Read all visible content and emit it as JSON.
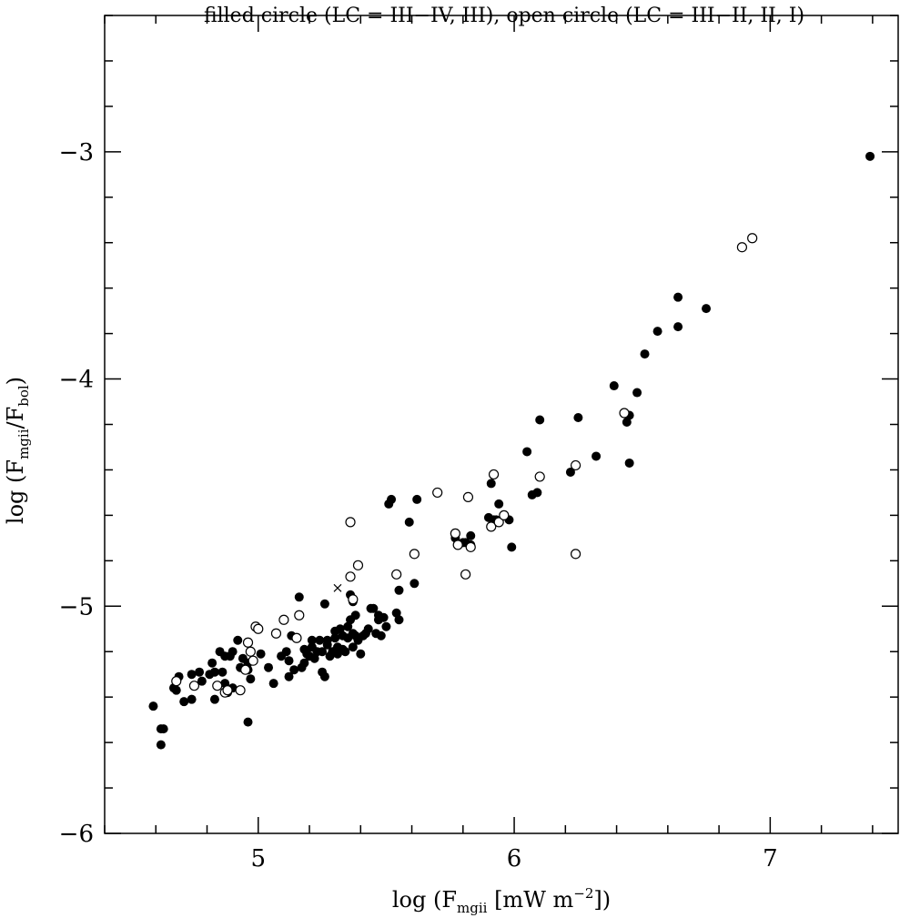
{
  "chart_data": {
    "type": "scatter",
    "title": "filled circle (LC = III−IV, III), open circle (LC = III−II, II, I)",
    "xlabel": {
      "main": "log (F",
      "sub": "mgii",
      "rest": " [mW m",
      "sup": "−2",
      "end": "])"
    },
    "ylabel": {
      "main": "log (F",
      "sub1": "mgii",
      "mid": "/F",
      "sub2": "bol",
      "end": ")"
    },
    "xlim": [
      4.4,
      7.5
    ],
    "ylim": [
      -6.0,
      -2.4
    ],
    "x_ticks": [
      {
        "value": 5,
        "label": "5"
      },
      {
        "value": 6,
        "label": "6"
      },
      {
        "value": 7,
        "label": "7"
      }
    ],
    "y_ticks": [
      {
        "value": -3,
        "label": "−3"
      },
      {
        "value": -4,
        "label": "−4"
      },
      {
        "value": -5,
        "label": "−5"
      },
      {
        "value": -6,
        "label": "−6"
      }
    ],
    "x_minor_step": 0.2,
    "y_minor_step": 0.2,
    "grid": false,
    "series": [
      {
        "name": "filled circle (LC = III−IV, III)",
        "marker": "filled-circle",
        "points": [
          [
            4.59,
            -5.44
          ],
          [
            4.62,
            -5.54
          ],
          [
            4.63,
            -5.54
          ],
          [
            4.62,
            -5.61
          ],
          [
            4.67,
            -5.36
          ],
          [
            4.68,
            -5.37
          ],
          [
            4.69,
            -5.31
          ],
          [
            4.71,
            -5.42
          ],
          [
            4.74,
            -5.41
          ],
          [
            4.74,
            -5.3
          ],
          [
            4.77,
            -5.29
          ],
          [
            4.78,
            -5.33
          ],
          [
            4.81,
            -5.3
          ],
          [
            4.82,
            -5.25
          ],
          [
            4.83,
            -5.29
          ],
          [
            4.83,
            -5.41
          ],
          [
            4.85,
            -5.2
          ],
          [
            4.86,
            -5.29
          ],
          [
            4.87,
            -5.34
          ],
          [
            4.87,
            -5.22
          ],
          [
            4.88,
            -5.38
          ],
          [
            4.89,
            -5.22
          ],
          [
            4.9,
            -5.36
          ],
          [
            4.9,
            -5.2
          ],
          [
            4.92,
            -5.15
          ],
          [
            4.93,
            -5.27
          ],
          [
            4.94,
            -5.23
          ],
          [
            4.96,
            -5.28
          ],
          [
            4.96,
            -5.25
          ],
          [
            4.97,
            -5.32
          ],
          [
            4.97,
            -5.2
          ],
          [
            4.96,
            -5.51
          ],
          [
            4.98,
            -5.24
          ],
          [
            5.01,
            -5.21
          ],
          [
            5.04,
            -5.27
          ],
          [
            5.06,
            -5.34
          ],
          [
            5.09,
            -5.22
          ],
          [
            5.11,
            -5.2
          ],
          [
            5.12,
            -5.31
          ],
          [
            5.12,
            -5.24
          ],
          [
            5.13,
            -5.13
          ],
          [
            5.14,
            -5.28
          ],
          [
            5.15,
            -5.14
          ],
          [
            5.16,
            -4.96
          ],
          [
            5.17,
            -5.27
          ],
          [
            5.18,
            -5.19
          ],
          [
            5.18,
            -5.25
          ],
          [
            5.19,
            -5.21
          ],
          [
            5.2,
            -5.22
          ],
          [
            5.21,
            -5.18
          ],
          [
            5.21,
            -5.15
          ],
          [
            5.22,
            -5.23
          ],
          [
            5.23,
            -5.2
          ],
          [
            5.24,
            -5.15
          ],
          [
            5.25,
            -5.29
          ],
          [
            5.26,
            -5.31
          ],
          [
            5.25,
            -5.2
          ],
          [
            5.26,
            -4.99
          ],
          [
            5.27,
            -5.17
          ],
          [
            5.27,
            -5.15
          ],
          [
            5.28,
            -5.22
          ],
          [
            5.29,
            -5.2
          ],
          [
            5.3,
            -5.11
          ],
          [
            5.3,
            -5.14
          ],
          [
            5.31,
            -5.18
          ],
          [
            5.31,
            -5.21
          ],
          [
            5.32,
            -5.1
          ],
          [
            5.33,
            -5.13
          ],
          [
            5.33,
            -5.19
          ],
          [
            5.34,
            -5.2
          ],
          [
            5.35,
            -5.14
          ],
          [
            5.35,
            -5.09
          ],
          [
            5.36,
            -5.06
          ],
          [
            5.36,
            -4.95
          ],
          [
            5.37,
            -5.12
          ],
          [
            5.37,
            -5.18
          ],
          [
            5.37,
            -4.98
          ],
          [
            5.38,
            -5.04
          ],
          [
            5.38,
            -5.13
          ],
          [
            5.39,
            -5.15
          ],
          [
            5.4,
            -5.21
          ],
          [
            5.41,
            -5.13
          ],
          [
            5.42,
            -5.12
          ],
          [
            5.43,
            -5.1
          ],
          [
            5.44,
            -5.01
          ],
          [
            5.45,
            -5.01
          ],
          [
            5.46,
            -5.12
          ],
          [
            5.47,
            -5.06
          ],
          [
            5.47,
            -5.04
          ],
          [
            5.48,
            -5.13
          ],
          [
            5.49,
            -5.05
          ],
          [
            5.5,
            -5.09
          ],
          [
            5.51,
            -4.55
          ],
          [
            5.52,
            -4.53
          ],
          [
            5.54,
            -5.03
          ],
          [
            5.55,
            -5.06
          ],
          [
            5.55,
            -4.93
          ],
          [
            5.59,
            -4.63
          ],
          [
            5.61,
            -4.9
          ],
          [
            5.62,
            -4.53
          ],
          [
            5.77,
            -4.7
          ],
          [
            5.8,
            -4.72
          ],
          [
            5.81,
            -4.72
          ],
          [
            5.83,
            -4.73
          ],
          [
            5.83,
            -4.69
          ],
          [
            5.9,
            -4.61
          ],
          [
            5.91,
            -4.46
          ],
          [
            5.92,
            -4.62
          ],
          [
            5.93,
            -4.62
          ],
          [
            5.94,
            -4.55
          ],
          [
            5.98,
            -4.62
          ],
          [
            5.99,
            -4.74
          ],
          [
            6.05,
            -4.32
          ],
          [
            6.07,
            -4.51
          ],
          [
            6.09,
            -4.5
          ],
          [
            6.1,
            -4.18
          ],
          [
            6.22,
            -4.41
          ],
          [
            6.25,
            -4.17
          ],
          [
            6.32,
            -4.34
          ],
          [
            6.39,
            -4.03
          ],
          [
            6.44,
            -4.19
          ],
          [
            6.45,
            -4.16
          ],
          [
            6.45,
            -4.37
          ],
          [
            6.48,
            -4.06
          ],
          [
            6.51,
            -3.89
          ],
          [
            6.56,
            -3.79
          ],
          [
            6.64,
            -3.77
          ],
          [
            6.64,
            -3.64
          ],
          [
            6.75,
            -3.69
          ],
          [
            7.39,
            -3.02
          ]
        ]
      },
      {
        "name": "open circle (LC = III−II, II, I)",
        "marker": "open-circle",
        "points": [
          [
            4.68,
            -5.33
          ],
          [
            4.75,
            -5.35
          ],
          [
            4.84,
            -5.35
          ],
          [
            4.87,
            -5.38
          ],
          [
            4.88,
            -5.37
          ],
          [
            4.93,
            -5.37
          ],
          [
            4.95,
            -5.28
          ],
          [
            4.96,
            -5.16
          ],
          [
            4.97,
            -5.2
          ],
          [
            4.98,
            -5.24
          ],
          [
            4.99,
            -5.09
          ],
          [
            5.0,
            -5.1
          ],
          [
            5.07,
            -5.12
          ],
          [
            5.1,
            -5.06
          ],
          [
            5.15,
            -5.14
          ],
          [
            5.16,
            -5.04
          ],
          [
            5.36,
            -4.87
          ],
          [
            5.36,
            -4.63
          ],
          [
            5.37,
            -4.97
          ],
          [
            5.39,
            -4.82
          ],
          [
            5.54,
            -4.86
          ],
          [
            5.61,
            -4.77
          ],
          [
            5.7,
            -4.5
          ],
          [
            5.77,
            -4.68
          ],
          [
            5.78,
            -4.73
          ],
          [
            5.81,
            -4.86
          ],
          [
            5.82,
            -4.52
          ],
          [
            5.83,
            -4.74
          ],
          [
            5.91,
            -4.65
          ],
          [
            5.92,
            -4.42
          ],
          [
            5.94,
            -4.63
          ],
          [
            5.96,
            -4.6
          ],
          [
            6.1,
            -4.43
          ],
          [
            6.24,
            -4.38
          ],
          [
            6.24,
            -4.77
          ],
          [
            6.43,
            -4.15
          ],
          [
            6.89,
            -3.42
          ],
          [
            6.93,
            -3.38
          ]
        ]
      },
      {
        "name": "",
        "marker": "cross",
        "points": [
          [
            5.31,
            -4.92
          ]
        ]
      }
    ]
  }
}
